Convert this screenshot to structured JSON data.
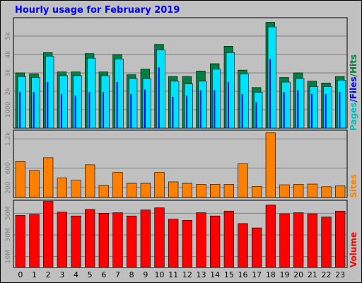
{
  "title": "Hourly usage for February 2019",
  "chart_data": [
    {
      "type": "bar",
      "panel": "pages-files-hits",
      "categories": [
        "0",
        "1",
        "2",
        "3",
        "4",
        "5",
        "6",
        "7",
        "8",
        "9",
        "10",
        "11",
        "12",
        "13",
        "14",
        "15",
        "16",
        "17",
        "18",
        "19",
        "20",
        "21",
        "22",
        "23"
      ],
      "series": [
        {
          "name": "Hits",
          "color": "#008040",
          "values": [
            3000,
            2950,
            4100,
            3050,
            3050,
            4050,
            3050,
            4000,
            2900,
            3200,
            4550,
            2800,
            2800,
            3100,
            3500,
            4450,
            3150,
            2200,
            5750,
            2750,
            3000,
            2550,
            2450,
            2800
          ]
        },
        {
          "name": "Files",
          "color": "#00e0ff",
          "values": [
            2800,
            2750,
            3900,
            2850,
            2850,
            3800,
            2850,
            3750,
            2700,
            2700,
            4250,
            2550,
            2400,
            2550,
            3200,
            4100,
            2950,
            1950,
            5500,
            2500,
            2700,
            2250,
            2250,
            2600
          ]
        },
        {
          "name": "Pages",
          "color": "#0000ff",
          "values": [
            1950,
            1950,
            2500,
            1850,
            1750,
            1950,
            1950,
            2500,
            1850,
            2100,
            3300,
            1700,
            1750,
            2050,
            2050,
            2500,
            1850,
            1400,
            3750,
            1950,
            2050,
            1850,
            1850,
            1950
          ]
        }
      ],
      "yticks": [
        "1000",
        "2k",
        "3k",
        "4k",
        "5k"
      ],
      "ylim": [
        0,
        6000
      ]
    },
    {
      "type": "bar",
      "panel": "sites",
      "categories": [
        "0",
        "1",
        "2",
        "3",
        "4",
        "5",
        "6",
        "7",
        "8",
        "9",
        "10",
        "11",
        "12",
        "13",
        "14",
        "15",
        "16",
        "17",
        "18",
        "19",
        "20",
        "21",
        "22",
        "23"
      ],
      "series": [
        {
          "name": "Sites",
          "color": "#ff8000",
          "values": [
            735,
            555,
            815,
            400,
            355,
            670,
            245,
            515,
            290,
            290,
            515,
            320,
            290,
            270,
            270,
            270,
            690,
            225,
            1325,
            260,
            270,
            275,
            220,
            235
          ]
        }
      ],
      "yticks": [
        "200",
        "600",
        "1.2k"
      ],
      "ylim": [
        0,
        1380
      ]
    },
    {
      "type": "bar",
      "panel": "volume",
      "categories": [
        "0",
        "1",
        "2",
        "3",
        "4",
        "5",
        "6",
        "7",
        "8",
        "9",
        "10",
        "11",
        "12",
        "13",
        "14",
        "15",
        "16",
        "17",
        "18",
        "19",
        "20",
        "21",
        "22",
        "23"
      ],
      "series": [
        {
          "name": "Volume",
          "color": "#ff0000",
          "values": [
            48.0,
            49.0,
            61.0,
            51.0,
            47.5,
            53.5,
            50.0,
            50.5,
            47.5,
            53.0,
            55.0,
            44.5,
            43.5,
            50.5,
            47.5,
            52.0,
            40.5,
            36.5,
            57.5,
            49.5,
            50.5,
            49.5,
            46.5,
            52.0
          ]
        }
      ],
      "yticks": [
        "10M",
        "30M",
        "50M"
      ],
      "ylim": [
        0,
        62
      ]
    }
  ],
  "legend": {
    "top": [
      {
        "text": "Pages",
        "color": "#00c0c0"
      },
      {
        "text": "/",
        "color": "#0000ff"
      },
      {
        "text": "Files",
        "color": "#0000ff"
      },
      {
        "text": "/",
        "color": "#008040"
      },
      {
        "text": "Hits",
        "color": "#008040"
      }
    ],
    "sites": {
      "text": "Sites",
      "color": "#ff8000"
    },
    "volume": {
      "text": "Volume",
      "color": "#ff0000"
    }
  }
}
